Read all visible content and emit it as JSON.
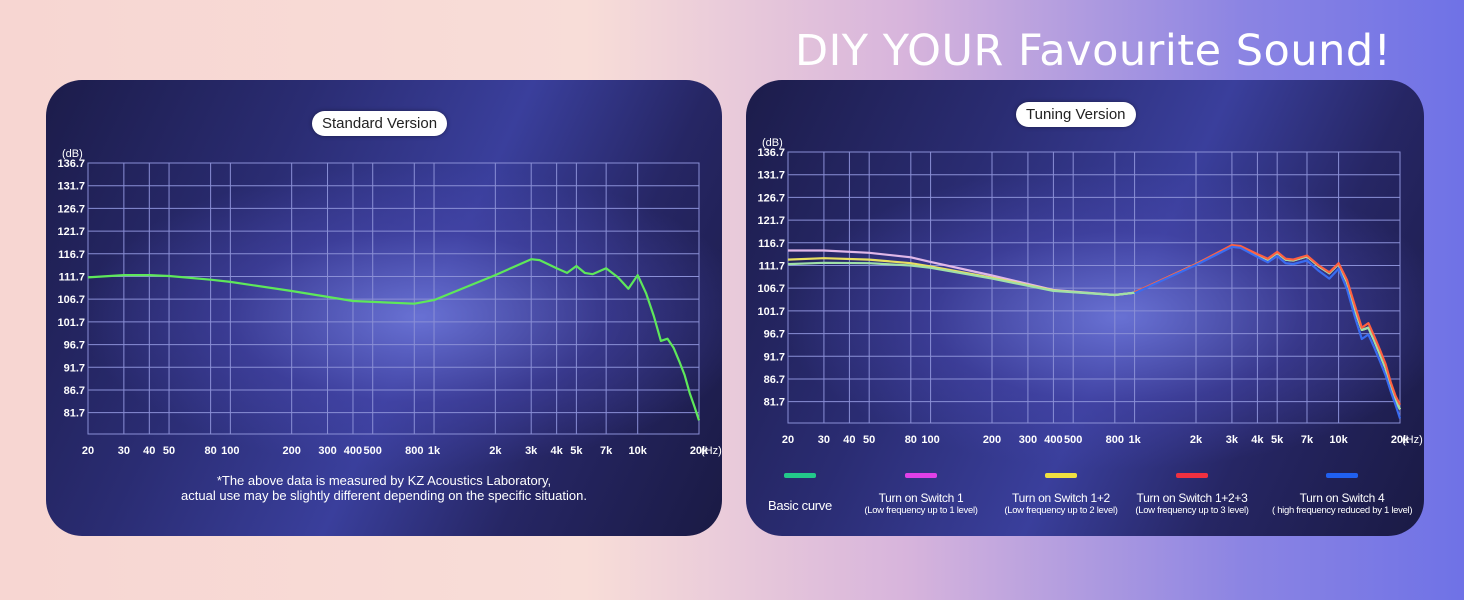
{
  "headline": "DIY YOUR Favourite Sound!",
  "chart_data": [
    {
      "type": "line",
      "title": "Standard Version",
      "ylabel": "(dB)",
      "xlabel": "(Hz)",
      "x_scale": "log",
      "xlim": [
        20,
        20000
      ],
      "ylim": [
        77,
        136.7
      ],
      "y_ticks": [
        "136.7",
        "131.7",
        "126.7",
        "121.7",
        "116.7",
        "111.7",
        "106.7",
        "101.7",
        "96.7",
        "91.7",
        "86.7",
        "81.7"
      ],
      "x_ticks": [
        {
          "v": 20,
          "t": "20"
        },
        {
          "v": 30,
          "t": "30"
        },
        {
          "v": 40,
          "t": "40"
        },
        {
          "v": 50,
          "t": "50"
        },
        {
          "v": 80,
          "t": "80"
        },
        {
          "v": 100,
          "t": "100"
        },
        {
          "v": 200,
          "t": "200"
        },
        {
          "v": 300,
          "t": "300"
        },
        {
          "v": 400,
          "t": "400"
        },
        {
          "v": 500,
          "t": "500"
        },
        {
          "v": 800,
          "t": "800"
        },
        {
          "v": 1000,
          "t": "1k"
        },
        {
          "v": 2000,
          "t": "2k"
        },
        {
          "v": 3000,
          "t": "3k"
        },
        {
          "v": 4000,
          "t": "4k"
        },
        {
          "v": 5000,
          "t": "5k"
        },
        {
          "v": 7000,
          "t": "7k"
        },
        {
          "v": 10000,
          "t": "10k"
        },
        {
          "v": 20000,
          "t": "20k"
        }
      ],
      "grid": true,
      "series": [
        {
          "color": "#5ee85a",
          "x": [
            20,
            30,
            40,
            50,
            80,
            100,
            200,
            400,
            800,
            1000,
            2000,
            3000,
            3300,
            4000,
            4500,
            5000,
            5500,
            6000,
            7000,
            8000,
            9000,
            10000,
            11000,
            12000,
            13000,
            14000,
            15000,
            16000,
            17000,
            18000,
            19000,
            20000
          ],
          "y": [
            111.5,
            112,
            112,
            111.8,
            111,
            110.5,
            108.5,
            106.3,
            105.7,
            106.5,
            112,
            115.5,
            115.3,
            113.5,
            112.5,
            114,
            112.5,
            112.2,
            113.5,
            111.5,
            109,
            112,
            108,
            103,
            97.5,
            98,
            96,
            93,
            90,
            86,
            83,
            80
          ]
        }
      ],
      "note": [
        "*The above data is measured by KZ Acoustics Laboratory,",
        "actual use may be slightly different depending on the specific situation."
      ]
    },
    {
      "type": "line",
      "title": "Tuning Version",
      "ylabel": "(dB)",
      "xlabel": "(Hz)",
      "x_scale": "log",
      "xlim": [
        20,
        20000
      ],
      "ylim": [
        77,
        136.7
      ],
      "y_ticks": [
        "136.7",
        "131.7",
        "126.7",
        "121.7",
        "116.7",
        "111.7",
        "106.7",
        "101.7",
        "96.7",
        "91.7",
        "86.7",
        "81.7"
      ],
      "x_ticks": [
        {
          "v": 20,
          "t": "20"
        },
        {
          "v": 30,
          "t": "30"
        },
        {
          "v": 40,
          "t": "40"
        },
        {
          "v": 50,
          "t": "50"
        },
        {
          "v": 80,
          "t": "80"
        },
        {
          "v": 100,
          "t": "100"
        },
        {
          "v": 200,
          "t": "200"
        },
        {
          "v": 300,
          "t": "300"
        },
        {
          "v": 400,
          "t": "400"
        },
        {
          "v": 500,
          "t": "500"
        },
        {
          "v": 800,
          "t": "800"
        },
        {
          "v": 1000,
          "t": "1k"
        },
        {
          "v": 2000,
          "t": "2k"
        },
        {
          "v": 3000,
          "t": "3k"
        },
        {
          "v": 4000,
          "t": "4k"
        },
        {
          "v": 5000,
          "t": "5k"
        },
        {
          "v": 7000,
          "t": "7k"
        },
        {
          "v": 10000,
          "t": "10k"
        },
        {
          "v": 20000,
          "t": "20k"
        }
      ],
      "grid": true,
      "series": [
        {
          "color": "#e0b8e8",
          "x": [
            20,
            30,
            50,
            80,
            100,
            200,
            400,
            800,
            1000,
            2000,
            3000,
            3300,
            4000,
            4500,
            5000,
            5500,
            6000,
            7000,
            8000,
            9000,
            10000,
            11000,
            12000,
            13000,
            14000,
            15000,
            16000,
            17000,
            18000,
            19000,
            20000
          ],
          "y": [
            115,
            115,
            114.5,
            113.5,
            112.5,
            109.5,
            106.3,
            105.2,
            105.7,
            112,
            116,
            115.8,
            114,
            113,
            114.5,
            113,
            112.8,
            113.7,
            111.5,
            110,
            112,
            108,
            102,
            97.5,
            98,
            95,
            92,
            89,
            85,
            82,
            80
          ]
        },
        {
          "color": "#e8e060",
          "x": [
            20,
            30,
            50,
            80,
            100,
            200,
            400,
            800,
            1000,
            2000,
            3000,
            3300,
            4000,
            4500,
            5000,
            5500,
            6000,
            7000,
            8000,
            9000,
            10000,
            11000,
            12000,
            13000,
            14000,
            15000,
            16000,
            17000,
            18000,
            19000,
            20000
          ],
          "y": [
            113,
            113.3,
            113,
            112.2,
            111.5,
            109,
            106.2,
            105.2,
            105.7,
            112,
            116,
            115.8,
            114,
            113,
            114.5,
            113,
            112.8,
            113.7,
            111.5,
            110,
            112,
            108,
            102,
            97.5,
            98,
            95,
            92,
            89,
            85,
            82,
            80
          ]
        },
        {
          "color": "#a0e0a8",
          "x": [
            20,
            30,
            50,
            80,
            100,
            200,
            400,
            800,
            1000,
            2000,
            3000,
            3300,
            4000,
            4500,
            5000,
            5500,
            6000,
            7000,
            8000,
            9000,
            10000,
            11000,
            12000,
            13000,
            14000,
            15000,
            16000,
            17000,
            18000,
            19000,
            20000
          ],
          "y": [
            112,
            112.3,
            112.2,
            111.7,
            111.2,
            108.8,
            106.1,
            105.2,
            105.7,
            112,
            116,
            115.8,
            114,
            113,
            114.5,
            113,
            112.8,
            113.7,
            111.5,
            110,
            112,
            108,
            102,
            97.5,
            98,
            95,
            92,
            89,
            85,
            82,
            80
          ]
        },
        {
          "color": "#ff6040",
          "x": [
            1000,
            2000,
            3000,
            3300,
            4000,
            4500,
            5000,
            5500,
            6000,
            7000,
            8000,
            9000,
            10000,
            11000,
            12000,
            13000,
            14000,
            15000,
            16000,
            17000,
            18000,
            19000,
            20000
          ],
          "y": [
            105.8,
            112,
            116.2,
            116,
            114.2,
            113.2,
            114.7,
            113.2,
            113,
            113.9,
            111.7,
            110.2,
            112.2,
            108.5,
            103,
            98,
            99,
            96,
            93,
            90,
            86,
            83,
            81
          ]
        },
        {
          "color": "#3a6cf0",
          "x": [
            1000,
            2000,
            3000,
            3300,
            4000,
            4500,
            5000,
            5500,
            6000,
            7000,
            8000,
            9000,
            10000,
            11000,
            12000,
            13000,
            14000,
            15000,
            16000,
            17000,
            18000,
            19000,
            20000
          ],
          "y": [
            105.6,
            111.8,
            115.8,
            115.6,
            113.6,
            112.4,
            113.8,
            112.2,
            112,
            112.8,
            110.5,
            108.8,
            111,
            106.5,
            100.5,
            95.5,
            96.5,
            93.5,
            90.5,
            87.5,
            84,
            81,
            78
          ]
        }
      ],
      "legend": [
        {
          "color": "#23c98a",
          "name": "Basic curve",
          "desc": ""
        },
        {
          "color": "#e040e8",
          "name": "Turn on Switch 1",
          "desc": "(Low frequency up to 1 level)"
        },
        {
          "color": "#f0e040",
          "name": "Turn on Switch 1+2",
          "desc": "(Low frequency up to 2 level)"
        },
        {
          "color": "#f03040",
          "name": "Turn on Switch 1+2+3",
          "desc": "(Low frequency up to 3 level)"
        },
        {
          "color": "#2060f0",
          "name": "Turn on Switch 4",
          "desc": "( high frequency reduced by 1 level)"
        }
      ]
    }
  ]
}
